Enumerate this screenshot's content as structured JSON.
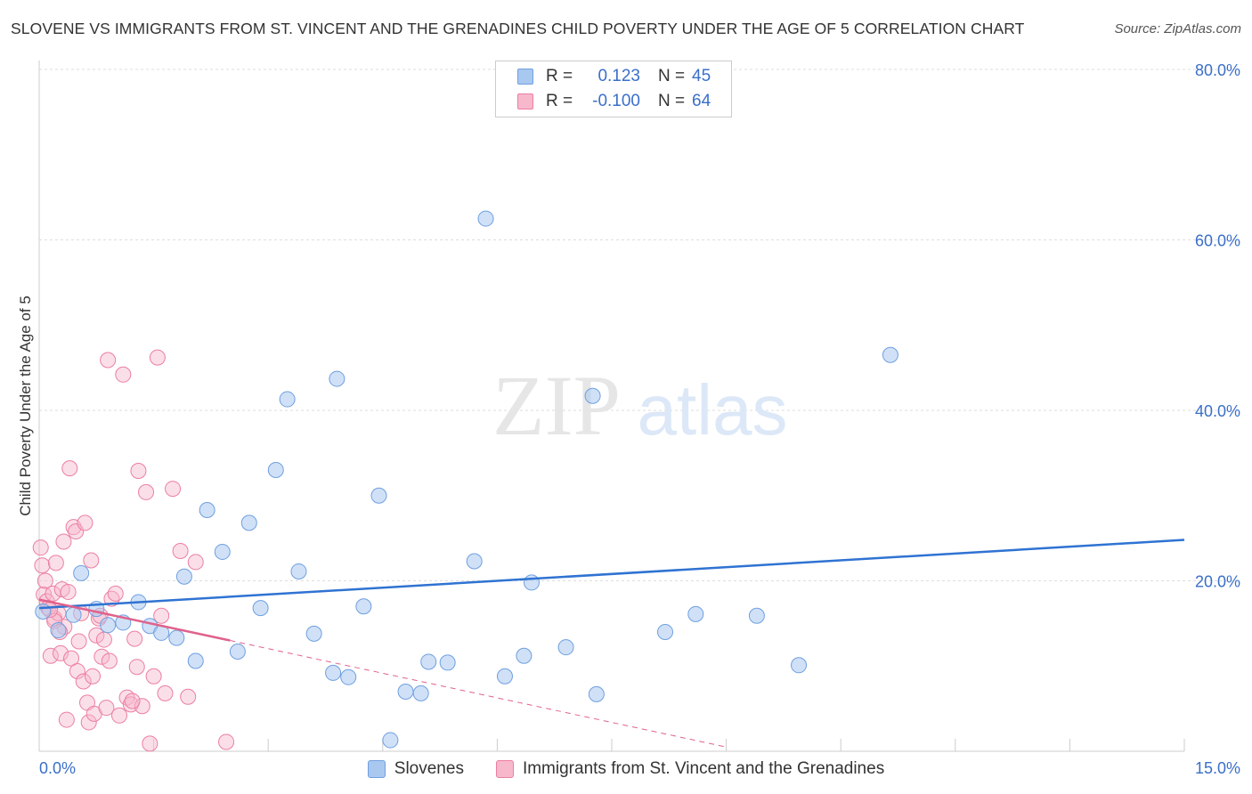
{
  "title": "SLOVENE VS IMMIGRANTS FROM ST. VINCENT AND THE GRENADINES CHILD POVERTY UNDER THE AGE OF 5 CORRELATION CHART",
  "source": "Source: ZipAtlas.com",
  "watermark": {
    "zip": "ZIP",
    "atlas": "atlas"
  },
  "legend": {
    "rows": [
      {
        "r_label": "R =",
        "r_value": "0.123",
        "n_label": "N =",
        "n_value": "45",
        "color": "#a9c8f0",
        "border": "#6f9fe0"
      },
      {
        "r_label": "R =",
        "r_value": "-0.100",
        "n_label": "N =",
        "n_value": "64",
        "color": "#f7b8cc",
        "border": "#ec7fa0"
      }
    ]
  },
  "colors": {
    "blue_fill": "#a9c8f0",
    "blue_stroke": "#6f9fe0",
    "blue_line": "#2f73d2",
    "pink_fill": "#f7b8cc",
    "pink_stroke": "#ec7fa0",
    "pink_line": "#e0628c",
    "grid": "#dddddd",
    "axis_text": "#3a6fc9"
  },
  "chart_data": {
    "type": "scatter",
    "title": "SLOVENE VS IMMIGRANTS FROM ST. VINCENT AND THE GRENADINES CHILD POVERTY UNDER THE AGE OF 5 CORRELATION CHART",
    "xlabel": "",
    "ylabel": "Child Poverty Under the Age of 5",
    "xlim": [
      0,
      15
    ],
    "ylim": [
      0,
      80
    ],
    "x_tick_labels": [
      "0.0%",
      "15.0%"
    ],
    "y_ticks": [
      20,
      40,
      60,
      80
    ],
    "y_tick_labels": [
      "20.0%",
      "40.0%",
      "60.0%",
      "80.0%"
    ],
    "grid": true,
    "series": [
      {
        "name": "Slovenes",
        "color": "#a9c8f0",
        "trend": {
          "x": [
            0,
            15
          ],
          "y": [
            16.8,
            24.8
          ]
        },
        "points": [
          [
            0.25,
            14.2
          ],
          [
            0.45,
            16.0
          ],
          [
            0.55,
            20.9
          ],
          [
            0.75,
            16.7
          ],
          [
            0.9,
            14.8
          ],
          [
            1.1,
            15.1
          ],
          [
            1.3,
            17.5
          ],
          [
            1.45,
            14.7
          ],
          [
            1.6,
            13.9
          ],
          [
            1.8,
            13.3
          ],
          [
            1.9,
            20.5
          ],
          [
            2.05,
            10.6
          ],
          [
            2.2,
            28.3
          ],
          [
            2.4,
            23.4
          ],
          [
            2.6,
            11.7
          ],
          [
            2.75,
            26.8
          ],
          [
            2.9,
            16.8
          ],
          [
            3.1,
            33.0
          ],
          [
            3.25,
            41.3
          ],
          [
            3.4,
            21.1
          ],
          [
            3.6,
            13.8
          ],
          [
            3.85,
            9.2
          ],
          [
            3.9,
            43.7
          ],
          [
            4.05,
            8.7
          ],
          [
            4.25,
            17.0
          ],
          [
            4.45,
            30.0
          ],
          [
            4.6,
            1.3
          ],
          [
            4.8,
            7.0
          ],
          [
            5.0,
            6.8
          ],
          [
            5.1,
            10.5
          ],
          [
            5.35,
            10.4
          ],
          [
            5.7,
            22.3
          ],
          [
            5.85,
            62.5
          ],
          [
            6.1,
            8.8
          ],
          [
            6.35,
            11.2
          ],
          [
            6.45,
            19.8
          ],
          [
            6.9,
            12.2
          ],
          [
            7.25,
            41.7
          ],
          [
            7.3,
            6.7
          ],
          [
            8.2,
            14.0
          ],
          [
            8.6,
            16.1
          ],
          [
            9.4,
            15.9
          ],
          [
            9.95,
            10.1
          ],
          [
            11.15,
            46.5
          ],
          [
            0.05,
            16.4
          ]
        ]
      },
      {
        "name": "Immigrants from St. Vincent and the Grenadines",
        "color": "#f7b8cc",
        "trend": {
          "x": [
            0,
            2.5
          ],
          "y": [
            17.8,
            13.0
          ],
          "dashed_to": {
            "x": [
              2.5,
              9.0
            ],
            "y": [
              13.0,
              0.5
            ]
          }
        },
        "points": [
          [
            0.02,
            23.9
          ],
          [
            0.04,
            21.8
          ],
          [
            0.06,
            18.4
          ],
          [
            0.08,
            20.0
          ],
          [
            0.1,
            17.6
          ],
          [
            0.12,
            16.8
          ],
          [
            0.15,
            11.2
          ],
          [
            0.18,
            18.5
          ],
          [
            0.2,
            15.6
          ],
          [
            0.22,
            22.1
          ],
          [
            0.25,
            16.2
          ],
          [
            0.28,
            11.5
          ],
          [
            0.3,
            19.0
          ],
          [
            0.33,
            14.6
          ],
          [
            0.36,
            3.7
          ],
          [
            0.38,
            18.7
          ],
          [
            0.4,
            33.2
          ],
          [
            0.42,
            10.9
          ],
          [
            0.45,
            26.3
          ],
          [
            0.48,
            25.8
          ],
          [
            0.5,
            9.4
          ],
          [
            0.55,
            16.2
          ],
          [
            0.58,
            8.2
          ],
          [
            0.6,
            26.8
          ],
          [
            0.63,
            5.7
          ],
          [
            0.65,
            3.4
          ],
          [
            0.68,
            22.4
          ],
          [
            0.72,
            4.4
          ],
          [
            0.75,
            13.6
          ],
          [
            0.78,
            15.6
          ],
          [
            0.8,
            15.9
          ],
          [
            0.82,
            11.1
          ],
          [
            0.85,
            13.1
          ],
          [
            0.88,
            5.1
          ],
          [
            0.9,
            45.9
          ],
          [
            0.95,
            17.9
          ],
          [
            1.0,
            18.5
          ],
          [
            1.05,
            4.2
          ],
          [
            1.1,
            44.2
          ],
          [
            1.15,
            6.3
          ],
          [
            1.2,
            5.5
          ],
          [
            1.25,
            13.2
          ],
          [
            1.28,
            9.9
          ],
          [
            1.3,
            32.9
          ],
          [
            1.35,
            5.3
          ],
          [
            1.4,
            30.4
          ],
          [
            1.45,
            0.9
          ],
          [
            1.5,
            8.8
          ],
          [
            1.55,
            46.2
          ],
          [
            1.6,
            15.9
          ],
          [
            1.65,
            6.8
          ],
          [
            1.75,
            30.8
          ],
          [
            1.85,
            23.5
          ],
          [
            1.95,
            6.4
          ],
          [
            2.05,
            22.2
          ],
          [
            0.2,
            15.3
          ],
          [
            0.32,
            24.6
          ],
          [
            0.52,
            12.9
          ],
          [
            0.7,
            8.8
          ],
          [
            0.92,
            10.6
          ],
          [
            1.22,
            5.9
          ],
          [
            2.45,
            1.1
          ],
          [
            0.14,
            16.6
          ],
          [
            0.27,
            14.0
          ]
        ]
      }
    ]
  }
}
